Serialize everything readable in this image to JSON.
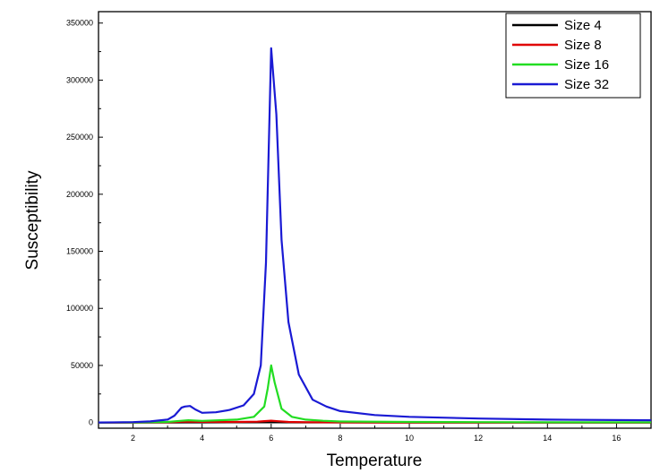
{
  "chart_data": {
    "type": "line",
    "xlabel": "Temperature",
    "ylabel": "Susceptibility",
    "xlim": [
      1,
      17
    ],
    "ylim": [
      -5000,
      360000
    ],
    "x_ticks": [
      2,
      4,
      6,
      8,
      10,
      12,
      14,
      16
    ],
    "y_ticks": [
      0,
      50000,
      100000,
      150000,
      200000,
      250000,
      300000,
      350000
    ],
    "grid": false,
    "legend_position": "top-right",
    "series": [
      {
        "name": "Size 4",
        "color": "#000000",
        "x": [
          1,
          2,
          3,
          3.5,
          4,
          5,
          5.8,
          6,
          6.2,
          7,
          8,
          10,
          12,
          14,
          17
        ],
        "y": [
          0,
          20,
          60,
          110,
          120,
          160,
          200,
          230,
          200,
          120,
          70,
          40,
          25,
          18,
          12
        ]
      },
      {
        "name": "Size 8",
        "color": "#e00000",
        "x": [
          1,
          2,
          3,
          3.5,
          4,
          5,
          5.6,
          5.8,
          6,
          6.2,
          6.5,
          7,
          8,
          10,
          12,
          14,
          17
        ],
        "y": [
          0,
          60,
          200,
          800,
          600,
          500,
          700,
          1200,
          1600,
          1100,
          500,
          250,
          120,
          60,
          40,
          30,
          20
        ]
      },
      {
        "name": "Size 16",
        "color": "#22dd22",
        "x": [
          1,
          2,
          3,
          3.4,
          3.6,
          4,
          5,
          5.5,
          5.8,
          5.9,
          6,
          6.1,
          6.3,
          6.6,
          7,
          7.5,
          8,
          10,
          12,
          14,
          17
        ],
        "y": [
          0,
          100,
          500,
          1500,
          2000,
          1400,
          2500,
          5000,
          14000,
          30000,
          50000,
          35000,
          12000,
          5000,
          2500,
          1500,
          900,
          500,
          300,
          200,
          150
        ]
      },
      {
        "name": "Size 32",
        "color": "#1a1ad4",
        "x": [
          1,
          2,
          2.5,
          3,
          3.2,
          3.4,
          3.5,
          3.65,
          3.8,
          4,
          4.4,
          4.8,
          5.2,
          5.5,
          5.7,
          5.85,
          6,
          6.15,
          6.3,
          6.5,
          6.8,
          7.2,
          7.6,
          8,
          9,
          10,
          12,
          14,
          17
        ],
        "y": [
          0,
          300,
          1000,
          2500,
          6000,
          13000,
          14000,
          14500,
          11500,
          8500,
          9000,
          11000,
          15000,
          25000,
          50000,
          140000,
          328000,
          270000,
          160000,
          88000,
          42000,
          20000,
          14000,
          10000,
          6500,
          5000,
          3500,
          2500,
          2000
        ]
      }
    ]
  }
}
